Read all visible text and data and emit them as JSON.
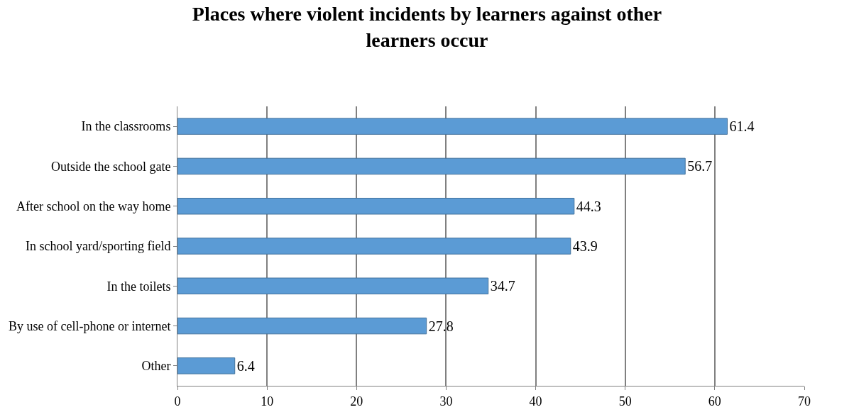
{
  "chart_data": {
    "type": "bar",
    "orientation": "horizontal",
    "title": "Places where violent incidents by learners against other learners occur",
    "categories": [
      "In the classrooms",
      "Outside the school gate",
      "After school on the way home",
      "In school yard/sporting field",
      "In the toilets",
      "By use of cell-phone or internet",
      "Other"
    ],
    "values": [
      61.4,
      56.7,
      44.3,
      43.9,
      34.7,
      27.8,
      6.4
    ],
    "color": "#5b9bd5",
    "xlim": [
      0,
      70
    ],
    "xticks": [
      0,
      10,
      20,
      30,
      40,
      50,
      60,
      70
    ],
    "grid": "x",
    "data_labels": true
  }
}
